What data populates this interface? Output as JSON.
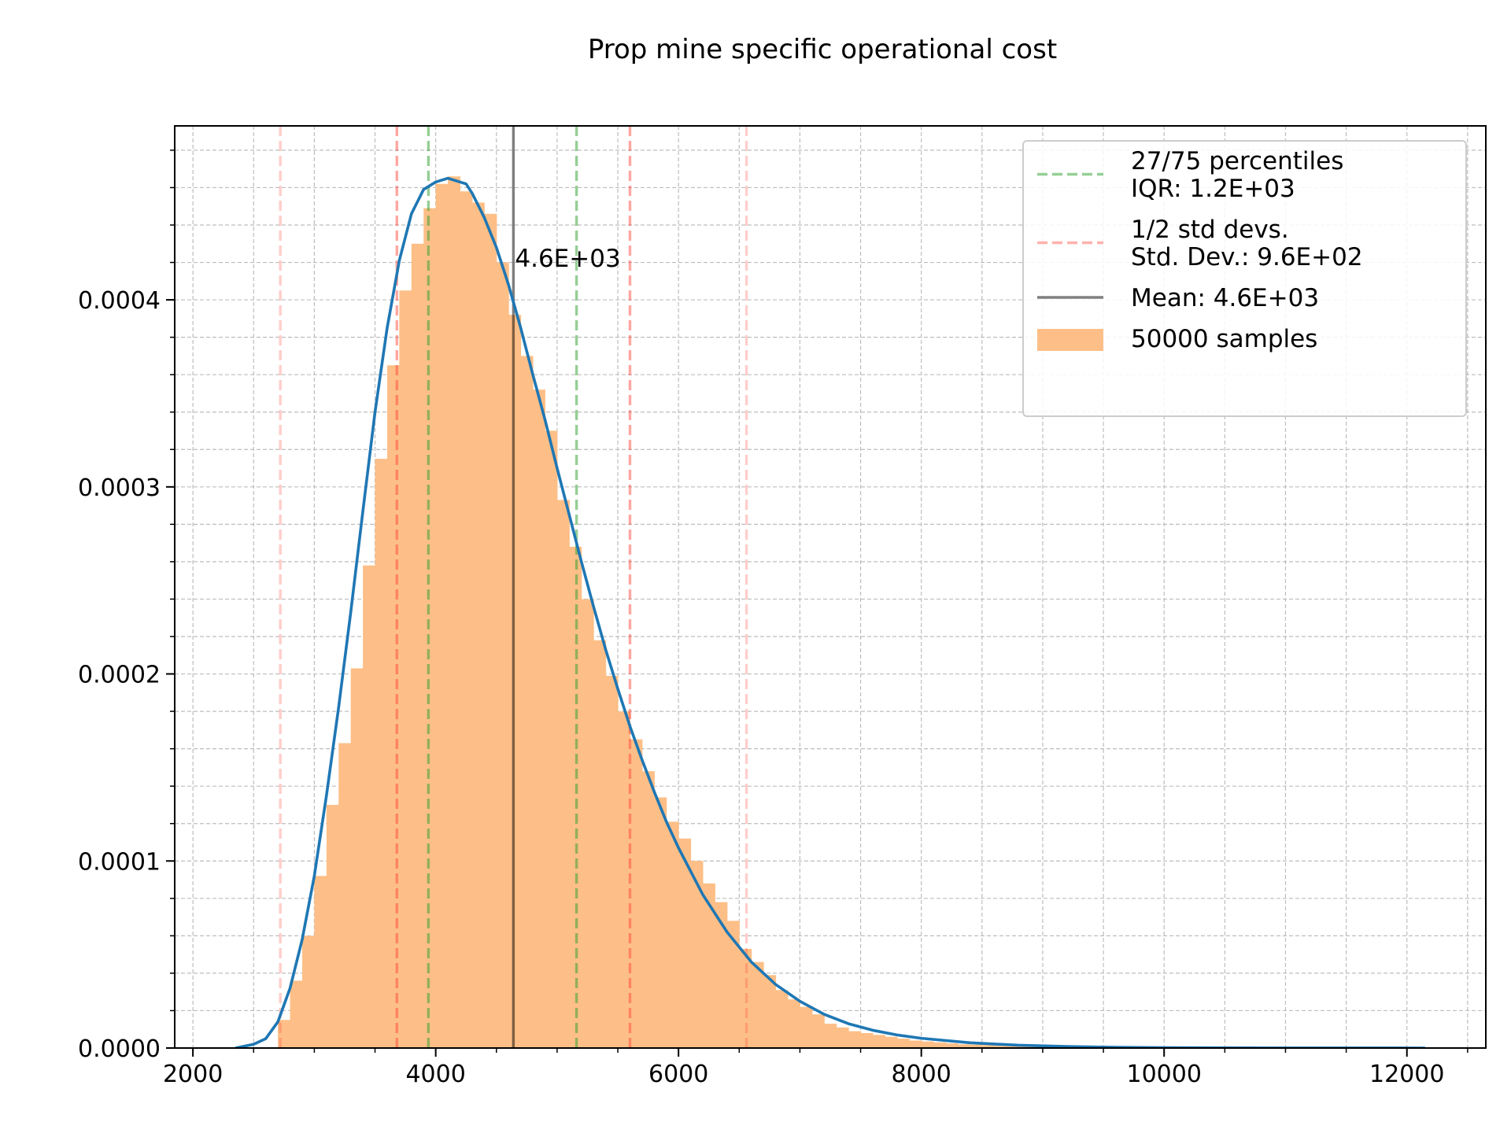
{
  "chart_data": {
    "type": "histogram",
    "title": "Prop mine specific operational cost",
    "xlabel": "",
    "ylabel": "",
    "xlim": [
      1850,
      12650
    ],
    "ylim": [
      0,
      0.000493
    ],
    "x_ticks": [
      2000,
      4000,
      6000,
      8000,
      10000,
      12000
    ],
    "x_tick_labels": [
      "2000",
      "4000",
      "6000",
      "8000",
      "10000",
      "12000"
    ],
    "y_ticks": [
      0,
      0.0001,
      0.0002,
      0.0003,
      0.0004
    ],
    "y_tick_labels": [
      "0.0000",
      "0.0001",
      "0.0002",
      "0.0003",
      "0.0004"
    ],
    "grid": true,
    "histogram": {
      "label": "50000 samples",
      "color": "#fdbf87",
      "bin_edges": [
        2700,
        2800,
        2900,
        3000,
        3100,
        3200,
        3300,
        3400,
        3500,
        3600,
        3700,
        3800,
        3900,
        4000,
        4100,
        4200,
        4300,
        4400,
        4500,
        4600,
        4700,
        4800,
        4900,
        5000,
        5100,
        5200,
        5300,
        5400,
        5500,
        5600,
        5700,
        5800,
        5900,
        6000,
        6100,
        6200,
        6300,
        6400,
        6500,
        6600,
        6700,
        6800,
        6900,
        7000,
        7100,
        7200,
        7300,
        7400,
        7500,
        7600,
        7700,
        7800,
        7900,
        8000,
        8100,
        8200,
        8300,
        8400,
        8500,
        8600,
        8700,
        8800,
        8900,
        9000,
        9100,
        9200,
        9300,
        9400,
        9500,
        9600,
        9700,
        9800,
        9900,
        10000,
        10100,
        10200,
        10300,
        10400,
        10500,
        10600,
        10700,
        10800,
        10900,
        11000,
        11100,
        11200,
        11300,
        11400,
        11500,
        11600,
        11700,
        11800,
        11900,
        12000,
        12100
      ],
      "densities": [
        1.5e-05,
        3.6e-05,
        6e-05,
        9.2e-05,
        0.00013,
        0.000163,
        0.000203,
        0.000258,
        0.000315,
        0.000365,
        0.000405,
        0.00043,
        0.000449,
        0.000462,
        0.000466,
        0.000458,
        0.000452,
        0.000446,
        0.00042,
        0.000392,
        0.00037,
        0.000352,
        0.00033,
        0.000293,
        0.000268,
        0.00024,
        0.000218,
        0.000199,
        0.00018,
        0.000165,
        0.000148,
        0.000134,
        0.000121,
        0.000112,
        0.0001,
        8.8e-05,
        7.8e-05,
        6.8e-05,
        5.3e-05,
        4.6e-05,
        3.9e-05,
        3.1e-05,
        2.6e-05,
        2.2e-05,
        1.8e-05,
        1.3e-05,
        1.1e-05,
        9e-06,
        8e-06,
        7e-06,
        6e-06,
        5e-06,
        4e-06,
        3.5e-06,
        3e-06,
        2.5e-06,
        2e-06,
        1.8e-06,
        1.5e-06,
        1.2e-06,
        1e-06,
        8e-07,
        7e-07,
        6e-07,
        5e-07,
        4e-07,
        3e-07,
        3e-07,
        2e-07,
        2e-07,
        2e-07,
        1e-07,
        1e-07,
        1e-07,
        1e-07,
        1e-07,
        1e-07,
        5e-08,
        5e-08,
        5e-08,
        5e-08,
        5e-08,
        3e-08,
        3e-08,
        3e-08,
        2e-08,
        2e-08,
        2e-08,
        2e-08,
        1e-08,
        1e-08,
        1e-08,
        1e-08,
        1e-08
      ]
    },
    "fit_curve": {
      "color": "#1f77b4",
      "x": [
        2350,
        2500,
        2600,
        2700,
        2800,
        2900,
        3000,
        3100,
        3200,
        3300,
        3400,
        3500,
        3600,
        3700,
        3800,
        3900,
        4000,
        4100,
        4200,
        4250,
        4300,
        4400,
        4500,
        4600,
        4700,
        4800,
        4900,
        5000,
        5100,
        5200,
        5300,
        5400,
        5500,
        5600,
        5700,
        5800,
        5900,
        6000,
        6200,
        6400,
        6600,
        6800,
        7000,
        7200,
        7400,
        7600,
        7800,
        8000,
        8400,
        8800,
        9200,
        9600,
        10000,
        10500,
        11000,
        11500,
        12150
      ],
      "y": [
        0.0,
        2e-06,
        5e-06,
        1.4e-05,
        3.2e-05,
        5.8e-05,
        9.2e-05,
        0.000135,
        0.000182,
        0.000233,
        0.000287,
        0.00034,
        0.000385,
        0.000421,
        0.000446,
        0.000459,
        0.000463,
        0.000465,
        0.000463,
        0.000462,
        0.000457,
        0.000444,
        0.000428,
        0.000408,
        0.000385,
        0.00036,
        0.000336,
        0.00031,
        0.000285,
        0.00026,
        0.000236,
        0.000213,
        0.000192,
        0.000172,
        0.000154,
        0.000137,
        0.000121,
        0.000107,
        8.2e-05,
        6.2e-05,
        4.6e-05,
        3.4e-05,
        2.5e-05,
        1.8e-05,
        1.3e-05,
        9.5e-06,
        7e-06,
        5.2e-06,
        2.8e-06,
        1.5e-06,
        8e-07,
        4e-07,
        2e-07,
        1e-07,
        4e-08,
        2e-08,
        0.0
      ]
    },
    "vlines": [
      {
        "name": "percentile-27",
        "x": 3940,
        "color": "#2ca02c",
        "style": "dashed",
        "opacity": 0.5
      },
      {
        "name": "percentile-75",
        "x": 5160,
        "color": "#2ca02c",
        "style": "dashed",
        "opacity": 0.5
      },
      {
        "name": "std-minus-1",
        "x": 3680,
        "color": "#ff3b30",
        "style": "dashed",
        "opacity": 0.45
      },
      {
        "name": "std-plus-1",
        "x": 5600,
        "color": "#ff3b30",
        "style": "dashed",
        "opacity": 0.45
      },
      {
        "name": "std-minus-2",
        "x": 2720,
        "color": "#ff3b30",
        "style": "dashed",
        "opacity": 0.25
      },
      {
        "name": "std-plus-2",
        "x": 6560,
        "color": "#ff3b30",
        "style": "dashed",
        "opacity": 0.25
      },
      {
        "name": "mean",
        "x": 4640,
        "color": "#000000",
        "style": "solid",
        "opacity": 0.5
      }
    ],
    "annotation": {
      "text": "4.6E+03",
      "x": 4640,
      "y": 0.000421
    },
    "legend": {
      "position": "top-right",
      "entries": [
        {
          "label_lines": [
            "27/75 percentiles",
            "IQR: 1.2E+03"
          ],
          "marker": "dashed",
          "color": "#2ca02c",
          "opacity": 0.5
        },
        {
          "label_lines": [
            "1/2 std devs.",
            " Std. Dev.: 9.6E+02"
          ],
          "marker": "dashed",
          "color": "#ff3b30",
          "opacity": 0.4
        },
        {
          "label_lines": [
            "Mean: 4.6E+03"
          ],
          "marker": "solid",
          "color": "#000000",
          "opacity": 0.5
        },
        {
          "label_lines": [
            "50000 samples"
          ],
          "marker": "patch",
          "color": "#fdbf87",
          "opacity": 1
        }
      ]
    }
  }
}
